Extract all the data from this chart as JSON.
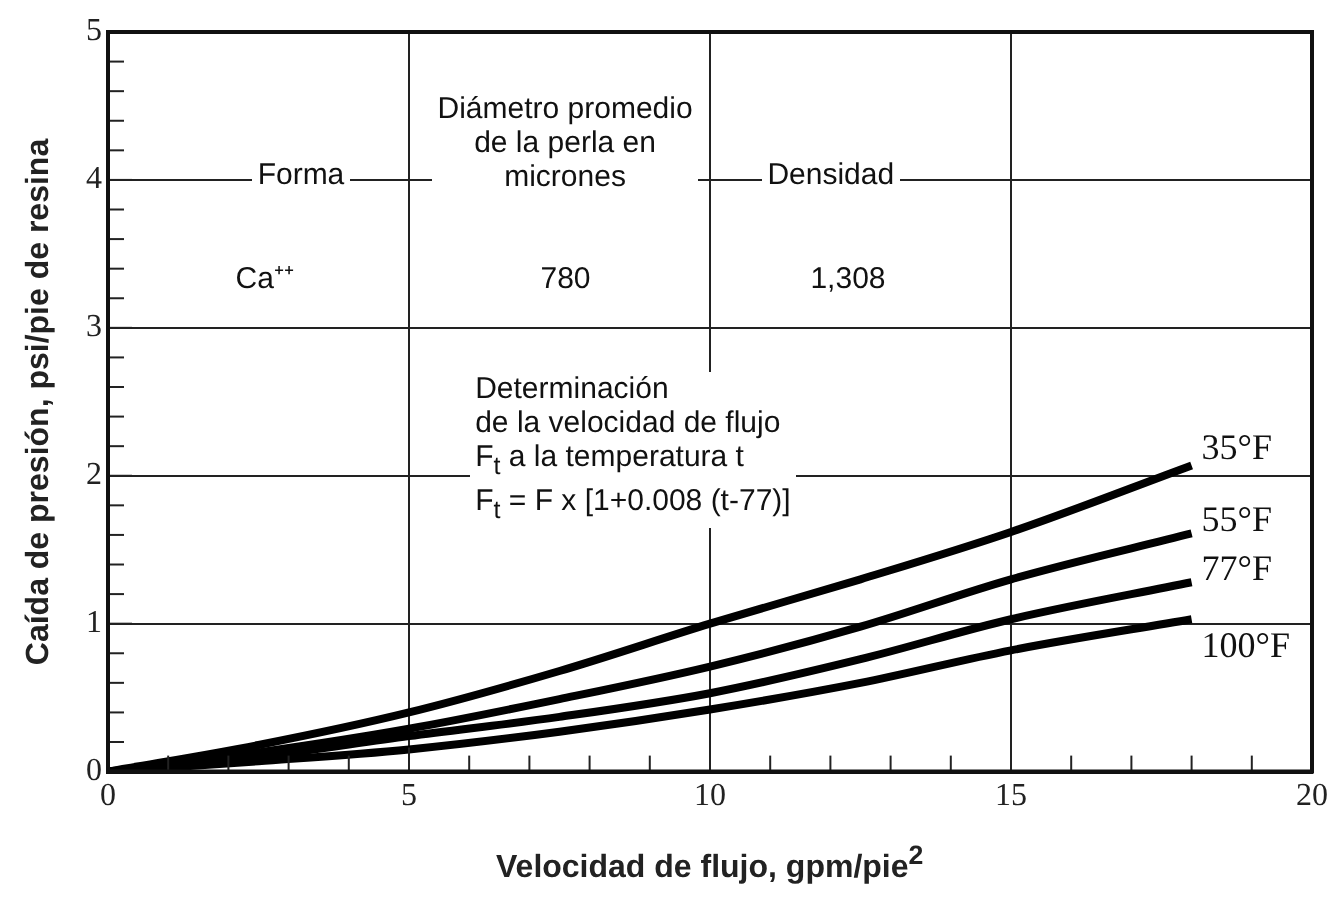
{
  "chart_data": {
    "type": "line",
    "xlabel": "Velocidad de flujo, gpm/pie$^{2}$",
    "ylabel": "Caída de presión, psi/pie de resina",
    "x": [
      0,
      2.5,
      5,
      7.5,
      10,
      12.5,
      15,
      18
    ],
    "series": [
      {
        "name": "35°F",
        "color": "#000000",
        "values": [
          0,
          0.18,
          0.4,
          0.68,
          1.0,
          1.3,
          1.62,
          2.07
        ]
      },
      {
        "name": "55°F",
        "color": "#000000",
        "values": [
          0,
          0.13,
          0.29,
          0.49,
          0.71,
          0.98,
          1.3,
          1.61
        ]
      },
      {
        "name": "77°F",
        "color": "#000000",
        "values": [
          0,
          0.1,
          0.24,
          0.37,
          0.53,
          0.76,
          1.03,
          1.28
        ]
      },
      {
        "name": "100°F",
        "color": "#000000",
        "values": [
          0,
          0.07,
          0.15,
          0.27,
          0.42,
          0.6,
          0.82,
          1.03
        ]
      }
    ],
    "xlim": [
      0,
      20
    ],
    "xticks": [
      0,
      {
        "value": 1,
        "label": null
      },
      {
        "value": 2,
        "label": null
      },
      {
        "value": 3,
        "label": null
      },
      {
        "value": 4,
        "label": null
      },
      5,
      {
        "value": 6,
        "label": null
      },
      {
        "value": 7,
        "label": null
      },
      {
        "value": 8,
        "label": null
      },
      {
        "value": 9,
        "label": null
      },
      10,
      {
        "value": 11,
        "label": null
      },
      {
        "value": 12,
        "label": null
      },
      {
        "value": 13,
        "label": null
      },
      {
        "value": 14,
        "label": null
      },
      15,
      {
        "value": 16,
        "label": null
      },
      {
        "value": 17,
        "label": null
      },
      {
        "value": 18,
        "label": null
      },
      {
        "value": 19,
        "label": null
      },
      20
    ],
    "ylim": [
      0,
      5
    ],
    "yticks": [
      0,
      {
        "value": 0.2,
        "label": null
      },
      {
        "value": 0.4,
        "label": null
      },
      {
        "value": 0.6,
        "label": null
      },
      {
        "value": 0.8,
        "label": null
      },
      1,
      {
        "value": 1.2,
        "label": null
      },
      {
        "value": 1.4,
        "label": null
      },
      {
        "value": 1.6,
        "label": null
      },
      {
        "value": 1.8,
        "label": null
      },
      2,
      {
        "value": 2.2,
        "label": null
      },
      {
        "value": 2.4,
        "label": null
      },
      {
        "value": 2.6,
        "label": null
      },
      {
        "value": 2.8,
        "label": null
      },
      3,
      {
        "value": 3.2,
        "label": null
      },
      {
        "value": 3.4,
        "label": null
      },
      {
        "value": 3.6,
        "label": null
      },
      {
        "value": 3.8,
        "label": null
      },
      4,
      {
        "value": 4.2,
        "label": null
      },
      {
        "value": 4.4,
        "label": null
      },
      {
        "value": 4.6,
        "label": null
      },
      {
        "value": 4.8,
        "label": null
      },
      5
    ],
    "grid": true,
    "legend": false,
    "marker": "none",
    "line_style": "solid",
    "annotations": [
      "Forma",
      "Diámetro promedio\nde la perla en\nmicrones",
      "Densidad",
      "Ca⁺⁺",
      "780",
      "1,308",
      "Determinación\nde la velocidad de flujo\nF$_{t}$ a la temperatura t\nF$_{t}$ = F x [1+0.008 (t-77)]"
    ]
  }
}
